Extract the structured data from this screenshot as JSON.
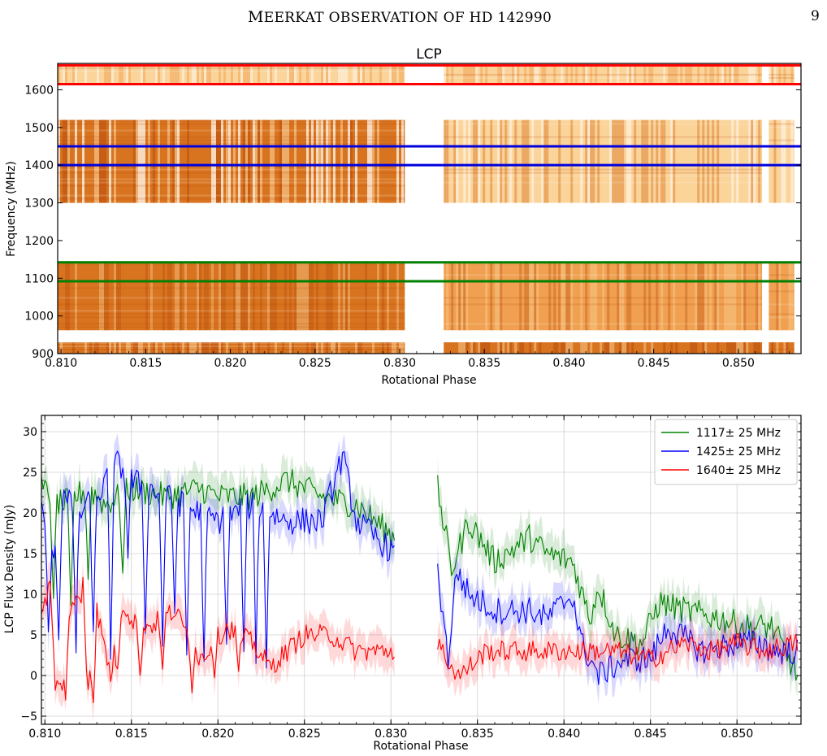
{
  "page": {
    "running_title_first": "M",
    "running_title_rest": "EERKAT OBSERVATION OF HD 142990",
    "page_number": "9"
  },
  "chart_data": [
    {
      "type": "heatmap",
      "title": "LCP",
      "xlabel": "Rotational Phase",
      "ylabel": "Frequency (MHz)",
      "xlim": [
        0.8098,
        0.8537
      ],
      "ylim": [
        900,
        1670
      ],
      "x_ticks": [
        "0.810",
        "0.815",
        "0.820",
        "0.825",
        "0.830",
        "0.835",
        "0.840",
        "0.845",
        "0.850"
      ],
      "y_ticks": [
        "900",
        "1000",
        "1100",
        "1200",
        "1300",
        "1400",
        "1500",
        "1600"
      ],
      "data_bands_mhz": [
        [
          900,
          930
        ],
        [
          962,
          1145
        ],
        [
          1300,
          1520
        ],
        [
          1612,
          1668
        ]
      ],
      "data_gaps_phase": [
        [
          0.8303,
          0.8326
        ],
        [
          0.8514,
          0.8518
        ]
      ],
      "marker_lines": [
        {
          "freq": 1092,
          "color": "#008000"
        },
        {
          "freq": 1142,
          "color": "#008000"
        },
        {
          "freq": 1400,
          "color": "#0000dd"
        },
        {
          "freq": 1450,
          "color": "#0000dd"
        },
        {
          "freq": 1615,
          "color": "#ff0000"
        },
        {
          "freq": 1665,
          "color": "#ff0000"
        }
      ],
      "colormap": [
        "#fff4e6",
        "#fbd49a",
        "#f0a050",
        "#d8731f",
        "#b54a0c"
      ]
    },
    {
      "type": "line",
      "xlabel": "Rotational Phase",
      "ylabel": "LCP Flux Density (mJy)",
      "xlim": [
        0.8098,
        0.8537
      ],
      "ylim": [
        -6,
        32
      ],
      "x_ticks": [
        "0.810",
        "0.815",
        "0.820",
        "0.825",
        "0.830",
        "0.835",
        "0.840",
        "0.845",
        "0.850"
      ],
      "y_ticks": [
        "−5",
        "0",
        "5",
        "10",
        "15",
        "20",
        "25",
        "30"
      ],
      "grid": true,
      "legend_position": "top-right",
      "segments_phase": [
        [
          0.8098,
          0.8302
        ],
        [
          0.8327,
          0.8535
        ]
      ],
      "series": [
        {
          "name": "1117± 25 MHz",
          "color": "#008000",
          "x": [
            0.8098,
            0.811,
            0.8125,
            0.8135,
            0.815,
            0.817,
            0.819,
            0.82,
            0.822,
            0.824,
            0.826,
            0.828,
            0.8302,
            0.8327,
            0.8335,
            0.8345,
            0.836,
            0.838,
            0.839,
            0.8405,
            0.8415,
            0.842,
            0.843,
            0.8445,
            0.8455,
            0.847,
            0.849,
            0.8505,
            0.8515,
            0.852,
            0.8535
          ],
          "y": [
            23,
            21,
            23,
            21,
            23,
            22,
            23,
            22,
            22,
            24,
            22,
            21,
            17,
            23,
            13,
            19,
            14,
            17,
            15,
            14,
            7,
            11,
            5,
            4,
            9,
            8,
            7,
            6,
            6,
            6,
            0
          ],
          "spikes": [
            [
              0.8105,
              8
            ],
            [
              0.8115,
              7
            ],
            [
              0.8125,
              12
            ],
            [
              0.8145,
              12
            ]
          ]
        },
        {
          "name": "1425± 25 MHz",
          "color": "#0000ff",
          "x": [
            0.8098,
            0.8105,
            0.811,
            0.812,
            0.813,
            0.8142,
            0.815,
            0.816,
            0.818,
            0.82,
            0.822,
            0.824,
            0.826,
            0.8272,
            0.828,
            0.8302,
            0.8327,
            0.8333,
            0.8338,
            0.8345,
            0.836,
            0.838,
            0.839,
            0.8405,
            0.841,
            0.842,
            0.8435,
            0.845,
            0.846,
            0.848,
            0.85,
            0.8515,
            0.852,
            0.8535
          ],
          "y": [
            21,
            15,
            22,
            20,
            22,
            26,
            24,
            23,
            21,
            19,
            21,
            19,
            19,
            27,
            19,
            15,
            13,
            2,
            13,
            10,
            8,
            8,
            7,
            10,
            4,
            0,
            2,
            2,
            6,
            3,
            4,
            4,
            3,
            3
          ],
          "spikes": [
            [
              0.8102,
              4
            ],
            [
              0.8108,
              4
            ],
            [
              0.8118,
              3
            ],
            [
              0.8128,
              4
            ],
            [
              0.8138,
              2
            ],
            [
              0.8148,
              15
            ],
            [
              0.8158,
              5
            ],
            [
              0.8168,
              3
            ],
            [
              0.8175,
              8
            ],
            [
              0.8182,
              2
            ],
            [
              0.8192,
              1
            ],
            [
              0.8205,
              4
            ],
            [
              0.8215,
              2
            ],
            [
              0.8222,
              3
            ],
            [
              0.8228,
              2
            ]
          ]
        },
        {
          "name": "1640± 25 MHz",
          "color": "#ff0000",
          "x": [
            0.8098,
            0.8103,
            0.8106,
            0.811,
            0.8115,
            0.812,
            0.8125,
            0.813,
            0.8138,
            0.8145,
            0.815,
            0.816,
            0.8175,
            0.819,
            0.8205,
            0.822,
            0.823,
            0.825,
            0.8265,
            0.828,
            0.8302,
            0.8327,
            0.8335,
            0.834,
            0.8355,
            0.8375,
            0.8395,
            0.841,
            0.843,
            0.845,
            0.847,
            0.8485,
            0.85,
            0.8515,
            0.8535
          ],
          "y": [
            8,
            11,
            -1,
            -2,
            9,
            9,
            -1,
            8,
            0,
            9,
            7,
            6,
            8,
            2,
            6,
            4,
            1,
            5,
            5,
            3,
            3,
            4,
            1,
            0,
            3,
            3,
            3,
            3,
            3,
            2,
            4,
            3,
            4,
            3,
            4
          ],
          "spikes": [
            [
              0.8112,
              -2
            ],
            [
              0.8122,
              12
            ],
            [
              0.8128,
              -3
            ],
            [
              0.8142,
              0
            ],
            [
              0.8155,
              -1
            ],
            [
              0.8168,
              0
            ],
            [
              0.8185,
              -1
            ],
            [
              0.8198,
              1
            ],
            [
              0.8212,
              0
            ]
          ]
        }
      ]
    }
  ]
}
